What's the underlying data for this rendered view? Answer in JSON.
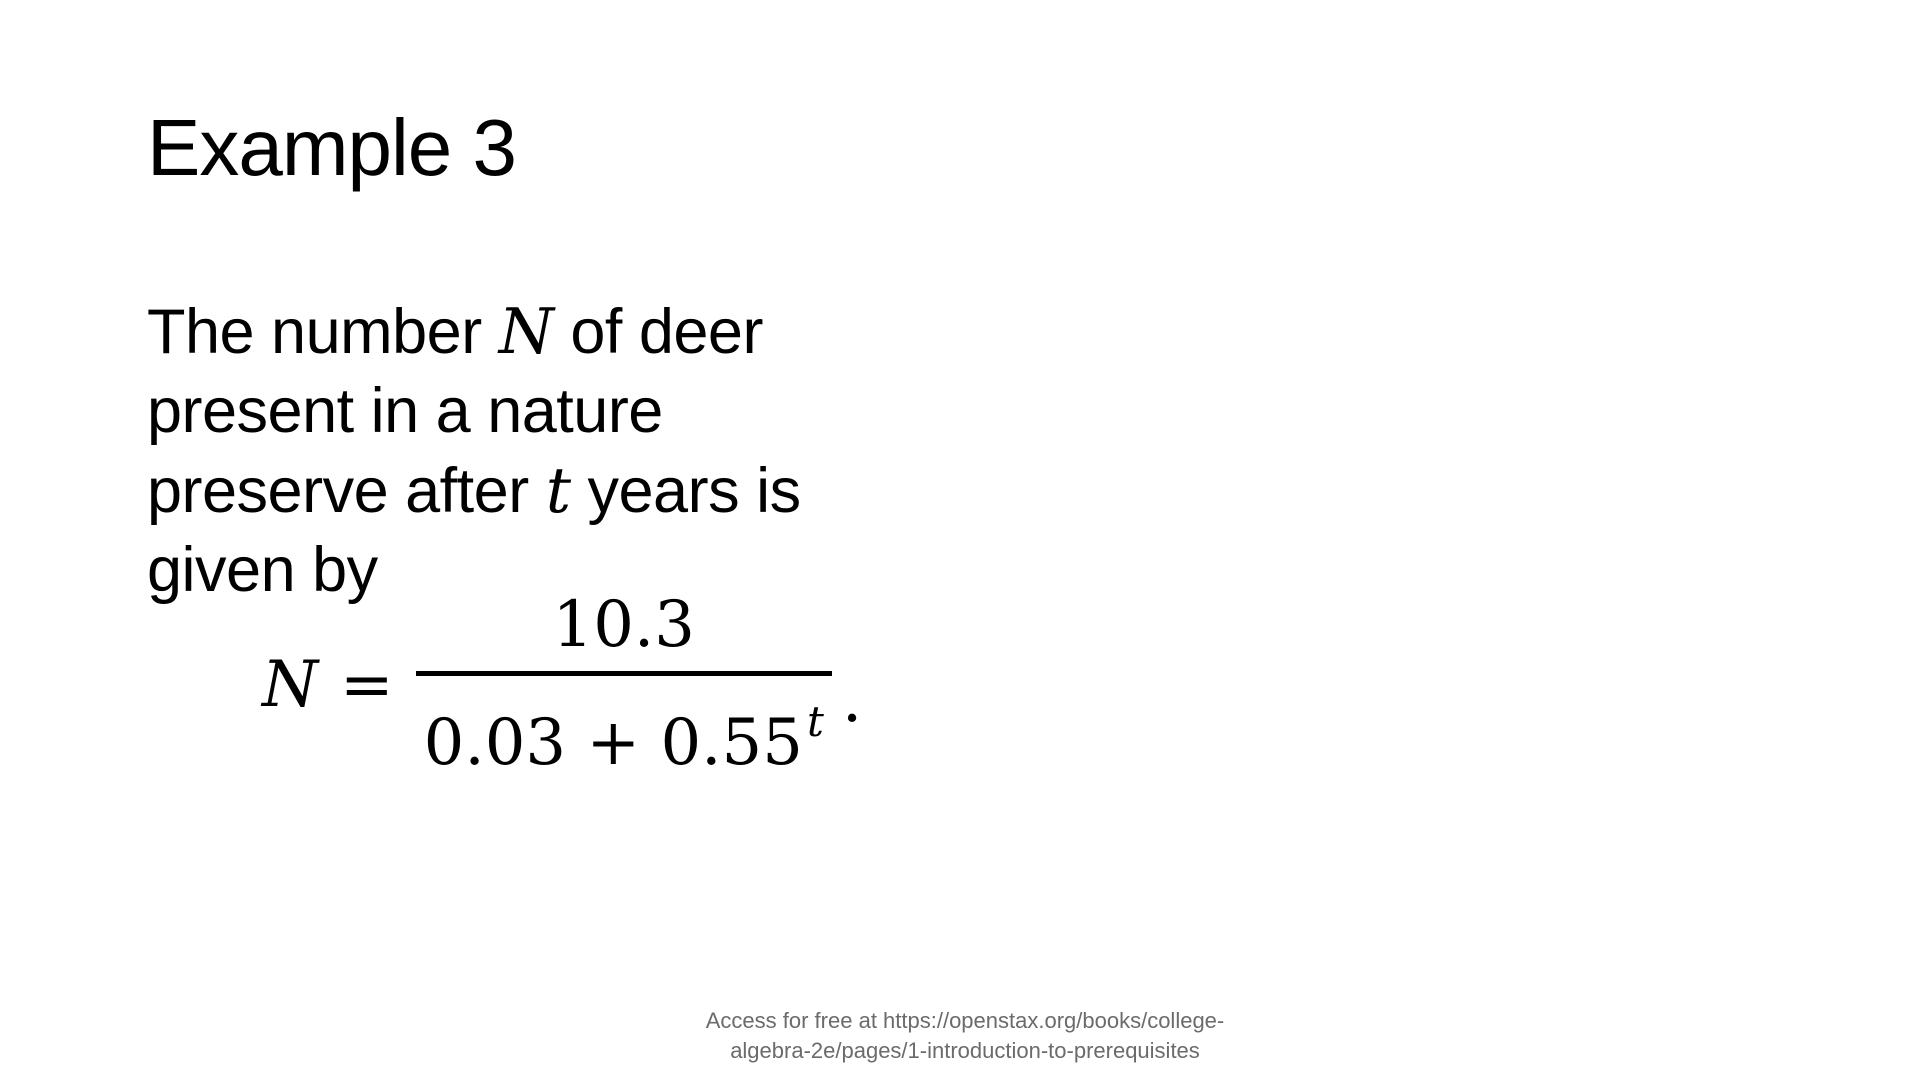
{
  "slide": {
    "title": "Example 3",
    "body": {
      "part1": "The number ",
      "var_n": "N",
      "part2": " of deer present in a nature preserve after ",
      "var_t": "t",
      "part3": " years is given by"
    },
    "equation": {
      "lhs": "N",
      "equals": "=",
      "numerator": "10.3",
      "denominator_base": "0.03 + 0.55",
      "denominator_exponent": "t",
      "trailing": "."
    },
    "footer": {
      "line1": "Access for free at https://openstax.org/books/college-",
      "line2": "algebra-2e/pages/1-introduction-to-prerequisites"
    }
  }
}
